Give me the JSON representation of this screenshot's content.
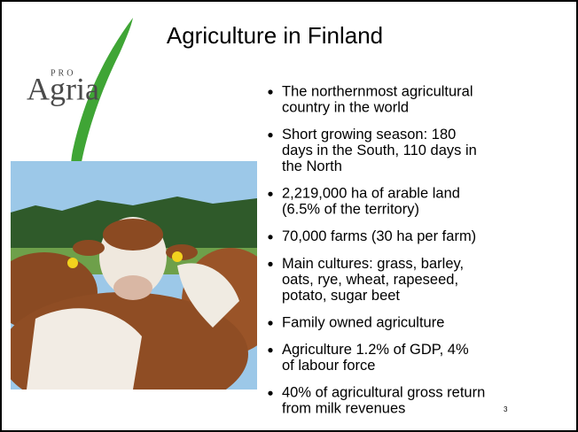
{
  "slide": {
    "title": "Agriculture in Finland",
    "logo": {
      "top": "PRO",
      "name": "Agria"
    },
    "bullets": [
      {
        "lines": [
          "The northernmost agricultural",
          "country in the world"
        ]
      },
      {
        "lines": [
          "Short growing season: 180",
          "days in the South, 110 days in",
          "the North"
        ]
      },
      {
        "lines": [
          "2,219,000 ha of arable land",
          "(6.5% of the territory)"
        ]
      },
      {
        "lines": [
          "70,000 farms (30 ha per farm)"
        ]
      },
      {
        "lines": [
          "Main cultures: grass, barley,",
          "oats, rye, wheat, rapeseed,",
          "potato, sugar beet"
        ]
      },
      {
        "lines": [
          "Family owned agriculture"
        ]
      },
      {
        "lines": [
          "Agriculture 1.2% of GDP, 4%",
          "of labour force"
        ]
      },
      {
        "lines": [
          "40% of agricultural gross return",
          "from milk revenues"
        ]
      }
    ],
    "page_number": "3"
  }
}
